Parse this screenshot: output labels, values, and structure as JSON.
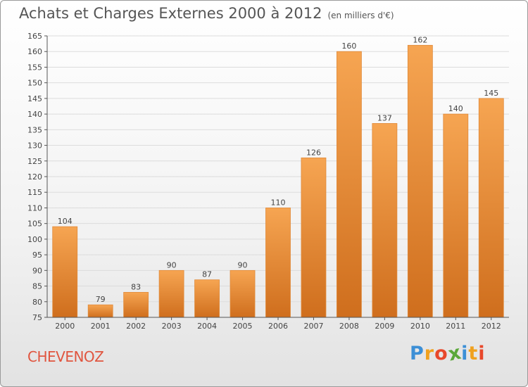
{
  "chart_data": {
    "type": "bar",
    "title": "Achats et Charges Externes 2000 à 2012",
    "subtitle": "(en milliers d'€)",
    "categories": [
      "2000",
      "2001",
      "2002",
      "2003",
      "2004",
      "2005",
      "2006",
      "2007",
      "2008",
      "2009",
      "2010",
      "2011",
      "2012"
    ],
    "values": [
      104,
      79,
      83,
      90,
      87,
      90,
      110,
      126,
      160,
      137,
      162,
      140,
      145
    ],
    "ylim": [
      75,
      165
    ],
    "yticks": [
      75,
      80,
      85,
      90,
      95,
      100,
      105,
      110,
      115,
      120,
      125,
      130,
      135,
      140,
      145,
      150,
      155,
      160,
      165
    ],
    "grid": true,
    "colors": {
      "bar_top": "#f6a552",
      "bar_bottom": "#cf6e1d",
      "bar_edge": "#e08a3a",
      "grid": "#dcdcdc"
    }
  },
  "footer": {
    "place": "CHEVENOZ",
    "logo_letters": [
      "P",
      "r",
      "o",
      "x",
      "i",
      "t",
      "i"
    ],
    "logo_colors": [
      "#3c8fd6",
      "#f0a11e",
      "#e8482b",
      "#5aa83a",
      "#3c8fd6",
      "#f0a11e",
      "#e8482b"
    ]
  }
}
